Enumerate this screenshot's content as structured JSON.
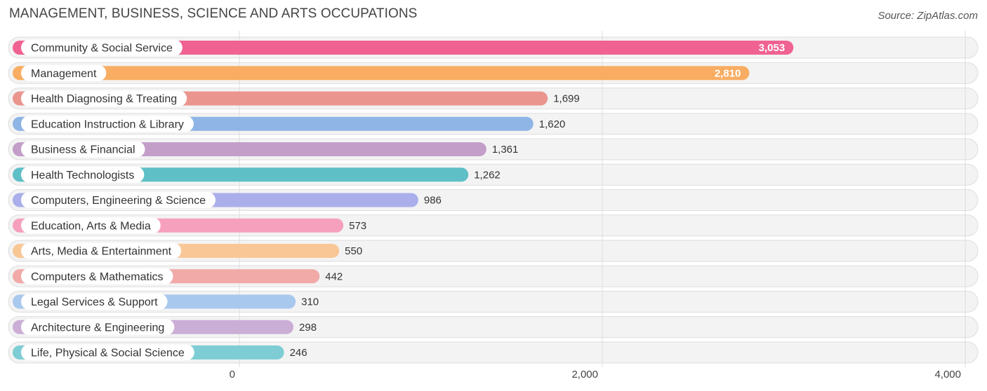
{
  "header": {
    "title": "MANAGEMENT, BUSINESS, SCIENCE AND ARTS OCCUPATIONS",
    "source": "Source: ZipAtlas.com"
  },
  "chart_data": {
    "type": "bar",
    "orientation": "horizontal",
    "title": "MANAGEMENT, BUSINESS, SCIENCE AND ARTS OCCUPATIONS",
    "xlabel": "",
    "ylabel": "",
    "xlim": [
      0,
      4000
    ],
    "ticks": [
      0,
      2000,
      4000
    ],
    "tick_labels": [
      "0",
      "2,000",
      "4,000"
    ],
    "grid": true,
    "categories": [
      "Community & Social Service",
      "Management",
      "Health Diagnosing & Treating",
      "Education Instruction & Library",
      "Business & Financial",
      "Health Technologists",
      "Computers, Engineering & Science",
      "Education, Arts & Media",
      "Arts, Media & Entertainment",
      "Computers & Mathematics",
      "Legal Services & Support",
      "Architecture & Engineering",
      "Life, Physical & Social Science"
    ],
    "values": [
      3053,
      2810,
      1699,
      1620,
      1361,
      1262,
      986,
      573,
      550,
      442,
      310,
      298,
      246
    ],
    "value_labels": [
      "3,053",
      "2,810",
      "1,699",
      "1,620",
      "1,361",
      "1,262",
      "986",
      "573",
      "550",
      "442",
      "310",
      "298",
      "246"
    ],
    "colors": [
      "#f06292",
      "#f8ad62",
      "#eb958f",
      "#8eb5e6",
      "#c29ec9",
      "#5fbfc6",
      "#aaaeea",
      "#f6a0bd",
      "#f9c796",
      "#f1aaa8",
      "#a9c8ee",
      "#cbaed6",
      "#7ecdd4"
    ]
  }
}
